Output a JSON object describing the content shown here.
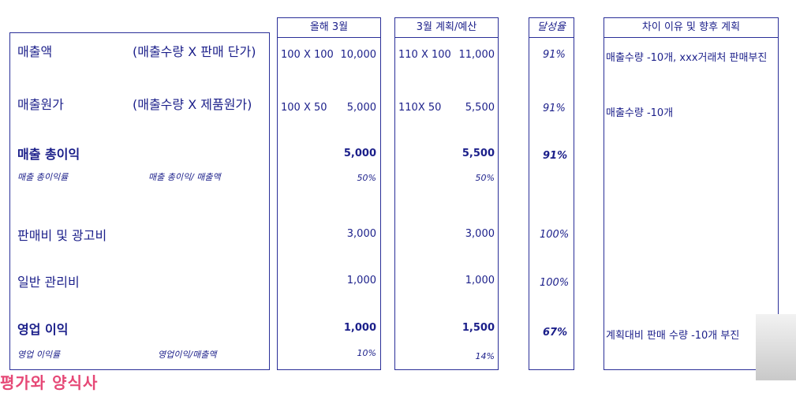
{
  "rows": {
    "sales": {
      "label": "매출액",
      "formula": "(매출수량 X 판매 단가)",
      "this_qty": "100 X 100",
      "this_val": "10,000",
      "plan_qty": "110 X 100",
      "plan_val": "11,000",
      "rate": "91%",
      "reason": "매출수량 -10개, xxx거래처 판매부진"
    },
    "cogs": {
      "label": "매출원가",
      "formula": "(매출수량 X 제품원가)",
      "this_qty": "100 X 50",
      "this_val": "5,000",
      "plan_qty": "110X 50",
      "plan_val": "5,500",
      "rate": "91%",
      "reason": "매출수량 -10개"
    },
    "gross": {
      "label": "매출 총이익",
      "this_val": "5,000",
      "plan_val": "5,500",
      "rate": "91%"
    },
    "gross_rate": {
      "label": "매출 총이익률",
      "formula": "매출 총이익/ 매출액",
      "this_val": "50%",
      "plan_val": "50%"
    },
    "sga": {
      "label": "판매비 및 광고비",
      "this_val": "3,000",
      "plan_val": "3,000",
      "rate": "100%"
    },
    "admin": {
      "label": "일반 관리비",
      "this_val": "1,000",
      "plan_val": "1,000",
      "rate": "100%"
    },
    "op": {
      "label": "영업 이익",
      "this_val": "1,000",
      "plan_val": "1,500",
      "rate": "67%",
      "reason": "계획대비 판매 수량 -10개 부진"
    },
    "op_rate": {
      "label": "영업 이익률",
      "formula": "영업이익/매출액",
      "this_val": "10%",
      "plan_val": "14%"
    }
  },
  "headers": {
    "this_year": "올해 3월",
    "plan": "3월 계획/예산",
    "rate": "달성율",
    "reason": "차이 이유 및 향후 계획"
  },
  "footer": {
    "cut_text": "평가와 양식사"
  },
  "colors": {
    "ink": "#1b1f8a",
    "border": "#2a2f98",
    "pink": "#e64876"
  }
}
